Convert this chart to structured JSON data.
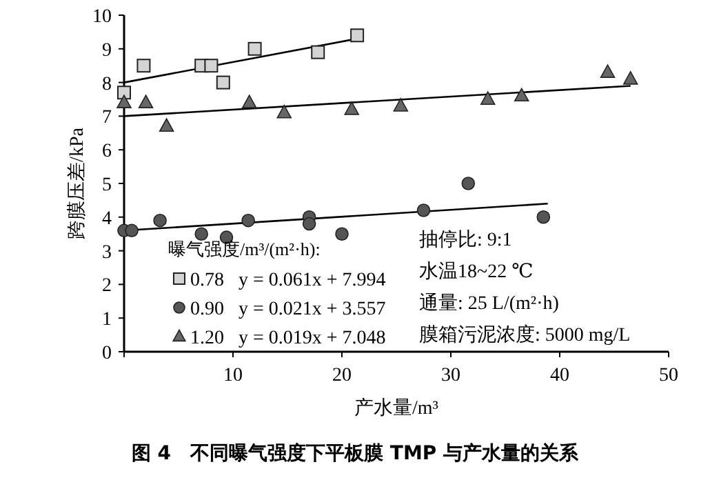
{
  "chart_data": {
    "type": "scatter",
    "title": "图 4　不同曝气强度下平板膜 TMP 与产水量的关系",
    "xlabel": "产水量/m³",
    "ylabel": "跨膜压差/kPa",
    "legend_title": "曝气强度/m³/(m²·h):",
    "legend": "bottom left",
    "grid": false,
    "xlim": [
      0,
      50
    ],
    "xticks": [
      {
        "value": 0,
        "label": null
      },
      10,
      20,
      30,
      40,
      50
    ],
    "ylim": [
      0,
      10
    ],
    "yticks": [
      0,
      1,
      2,
      3,
      4,
      5,
      6,
      7,
      8,
      9,
      10
    ],
    "annotations": [
      "抽停比: 9:1",
      "水温18~22 ℃",
      "通量: 25 L/(m²·h)",
      "膜箱污泥浓度: 5000 mg/L"
    ],
    "series": [
      {
        "name": "0.78   y = 0.061x + 7.994",
        "marker": "square",
        "color": "#d4d4d4",
        "x": [
          0,
          1.8,
          7.1,
          8,
          9.1,
          12,
          17.8,
          21.4
        ],
        "values": [
          7.7,
          8.5,
          8.5,
          8.5,
          8.0,
          9.0,
          8.9,
          9.4
        ]
      },
      {
        "name": "0.90   y = 0.021x + 3.557",
        "marker": "circle",
        "color": "#555555",
        "x": [
          0,
          0.7,
          3.3,
          7.1,
          9.4,
          11.4,
          17,
          17,
          20,
          27.5,
          31.6,
          38.5
        ],
        "values": [
          3.6,
          3.6,
          3.9,
          3.5,
          3.4,
          3.9,
          4.0,
          3.8,
          3.5,
          4.2,
          5.0,
          4.0
        ]
      },
      {
        "name": "1.20   y = 0.019x + 7.048",
        "marker": "triangle",
        "color": "#666666",
        "x": [
          0,
          2,
          3.9,
          11.5,
          14.7,
          20.9,
          25.4,
          33.4,
          36.5,
          44.4,
          46.5
        ],
        "values": [
          7.4,
          7.4,
          6.7,
          7.4,
          7.1,
          7.2,
          7.3,
          7.5,
          7.6,
          8.3,
          8.1
        ]
      },
      {
        "type": "line",
        "color": "#000000",
        "x": [
          0,
          21.4
        ],
        "values": [
          8.0,
          9.3
        ]
      },
      {
        "type": "line",
        "color": "#000000",
        "x": [
          0,
          38.9
        ],
        "values": [
          3.6,
          4.4
        ]
      },
      {
        "type": "line",
        "color": "#000000",
        "x": [
          0,
          46.5
        ],
        "values": [
          7.0,
          7.9
        ]
      }
    ]
  }
}
